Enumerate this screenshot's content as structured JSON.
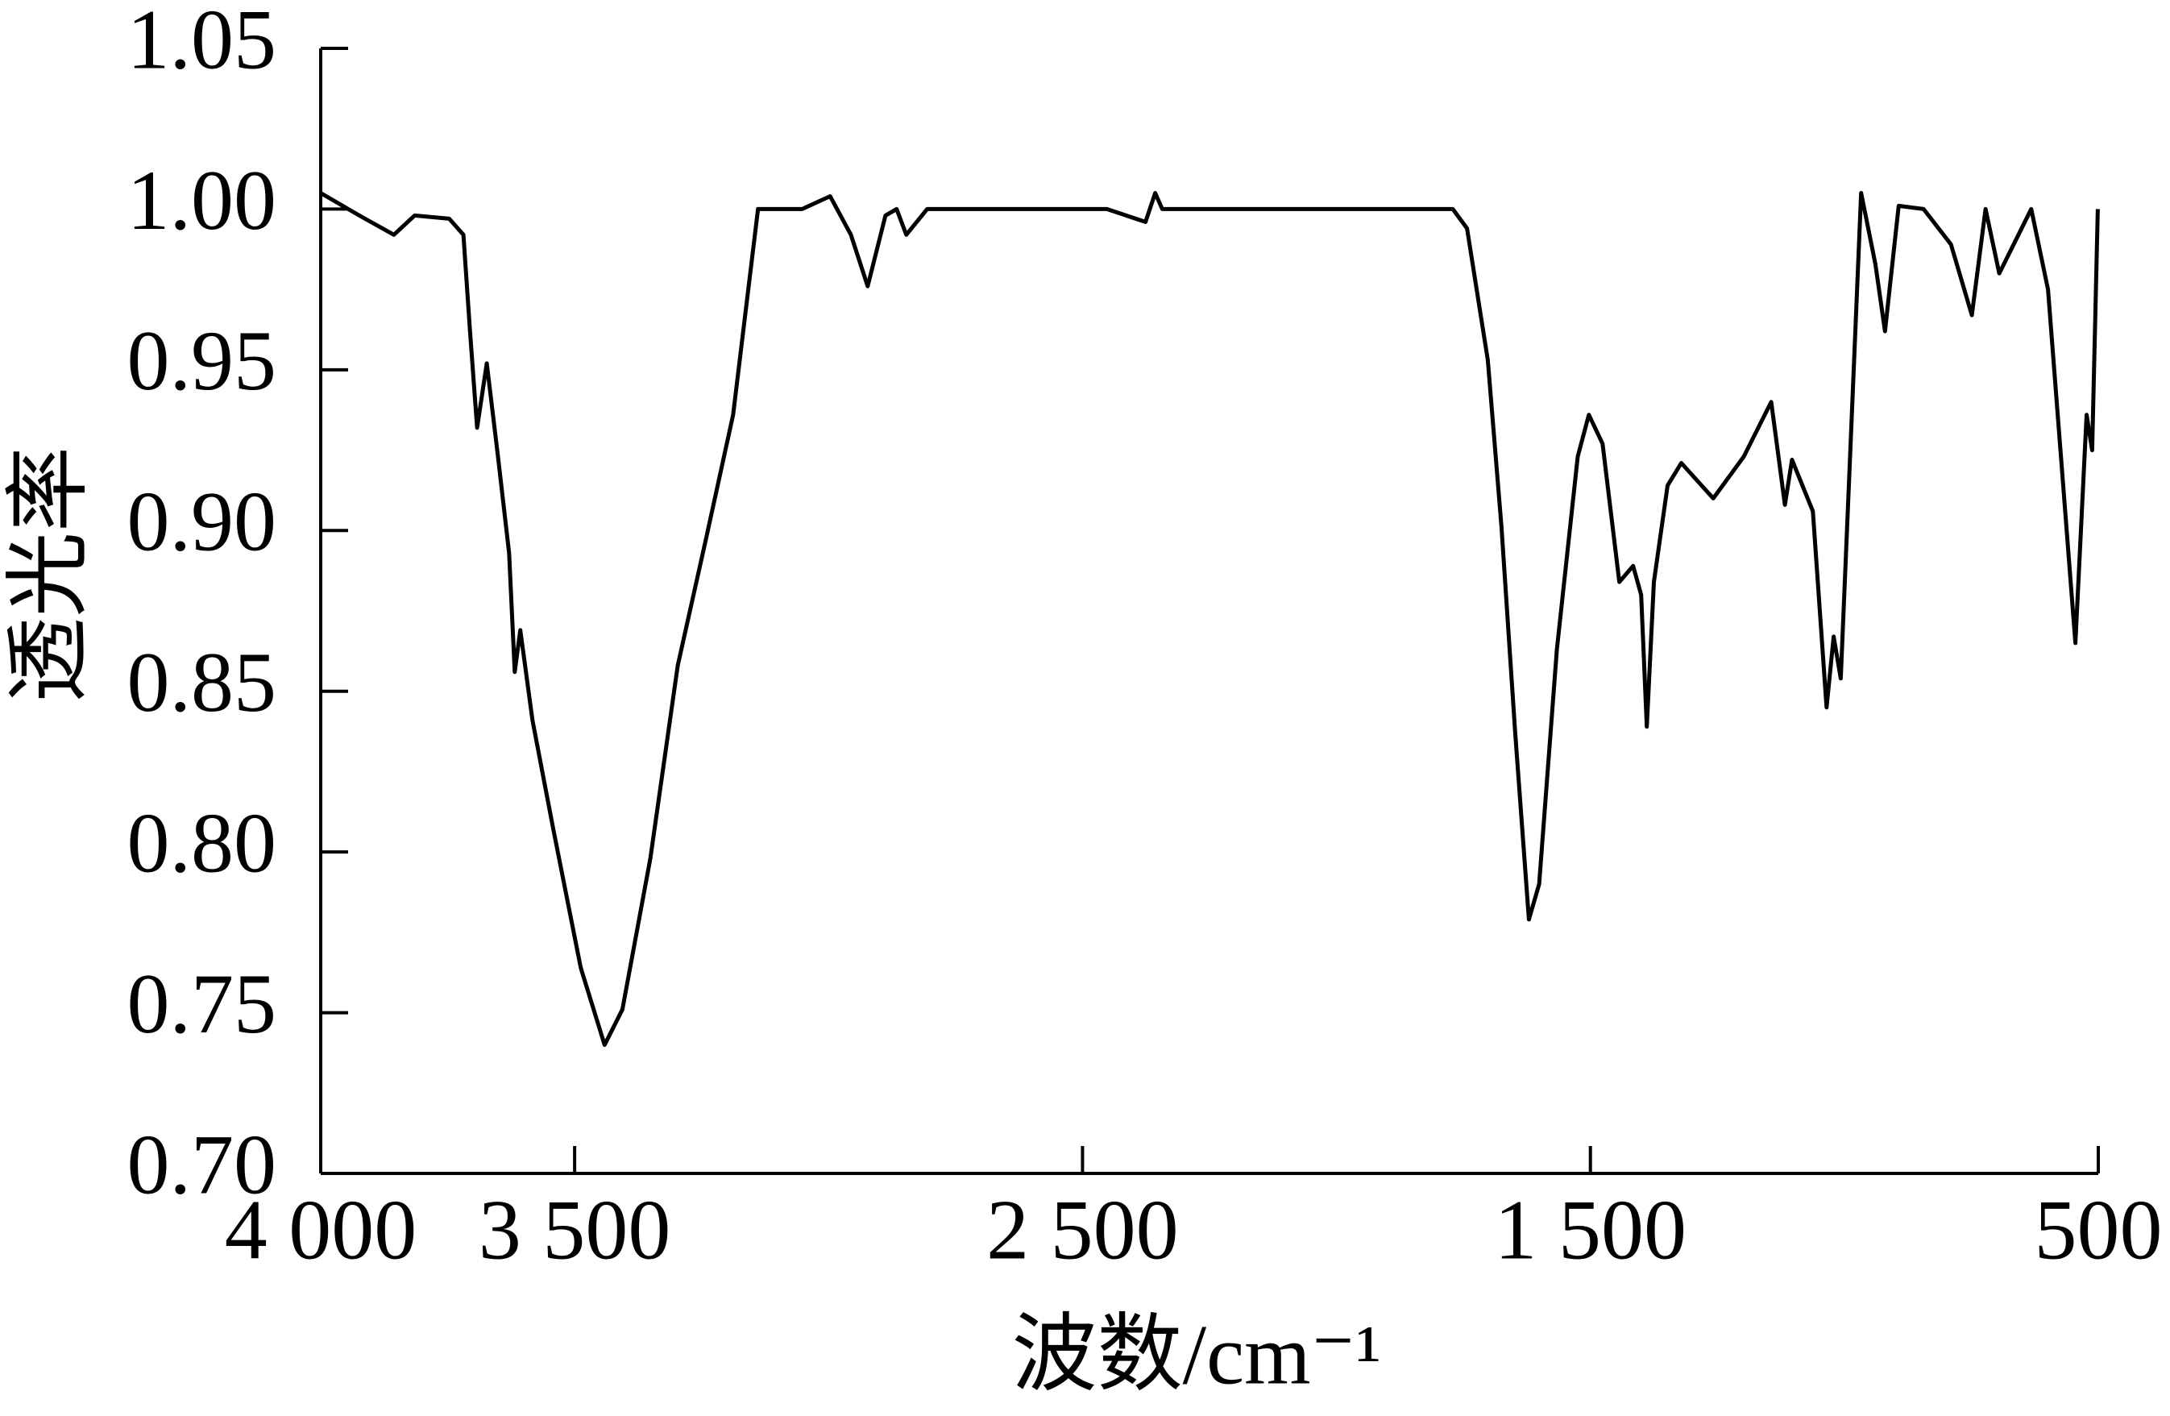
{
  "chart_data": {
    "type": "line",
    "x_label": "波数/cm⁻¹",
    "y_label": "透光率",
    "xlim": [
      4000,
      500
    ],
    "ylim": [
      0.7,
      1.05
    ],
    "xticks": [
      {
        "value": 4000,
        "label": "4 000"
      },
      {
        "value": 3500,
        "label": "3 500"
      },
      {
        "value": 2500,
        "label": "2 500"
      },
      {
        "value": 1500,
        "label": "1 500"
      },
      500
    ],
    "yticks": [
      {
        "value": 0.7,
        "label": "0.70"
      },
      0.75,
      {
        "value": 0.8,
        "label": "0.80"
      },
      0.85,
      {
        "value": 0.9,
        "label": "0.90"
      },
      0.95,
      {
        "value": 1,
        "label": "1.00"
      },
      1.05
    ],
    "x": [
      4000,
      3924,
      3856,
      3815,
      3747,
      3719,
      3706,
      3692,
      3673,
      3651,
      3629,
      3618,
      3607,
      3583,
      3542,
      3488,
      3441,
      3406,
      3351,
      3297,
      3242,
      3188,
      3139,
      3052,
      2997,
      2956,
      2923,
      2888,
      2866,
      2847,
      2806,
      2452,
      2376,
      2357,
      2343,
      1771,
      1743,
      1702,
      1675,
      1648,
      1621,
      1601,
      1566,
      1525,
      1503,
      1476,
      1443,
      1416,
      1400,
      1389,
      1375,
      1348,
      1321,
      1258,
      1198,
      1144,
      1117,
      1103,
      1062,
      1035,
      1021,
      1007,
      967,
      939,
      920,
      893,
      844,
      790,
      749,
      722,
      695,
      632,
      599,
      545,
      523,
      512,
      501
    ],
    "series": [
      {
        "color": "#000000",
        "values": [
          1.005,
          0.998,
          0.992,
          0.998,
          0.997,
          0.992,
          0.962,
          0.932,
          0.952,
          0.923,
          0.893,
          0.856,
          0.869,
          0.841,
          0.807,
          0.764,
          0.74,
          0.751,
          0.798,
          0.858,
          0.897,
          0.936,
          1.0,
          1.0,
          1.004,
          0.992,
          0.976,
          0.998,
          1.0,
          0.992,
          1.0,
          1.0,
          0.996,
          1.005,
          1.0,
          1.0,
          0.994,
          0.953,
          0.901,
          0.837,
          0.779,
          0.79,
          0.863,
          0.923,
          0.936,
          0.927,
          0.884,
          0.889,
          0.88,
          0.839,
          0.884,
          0.914,
          0.921,
          0.91,
          0.923,
          0.94,
          0.908,
          0.922,
          0.906,
          0.845,
          0.867,
          0.854,
          1.005,
          0.983,
          0.962,
          1.001,
          1.0,
          0.989,
          0.967,
          1.0,
          0.98,
          1.0,
          0.975,
          0.865,
          0.936,
          0.925,
          1.0
        ]
      }
    ]
  }
}
